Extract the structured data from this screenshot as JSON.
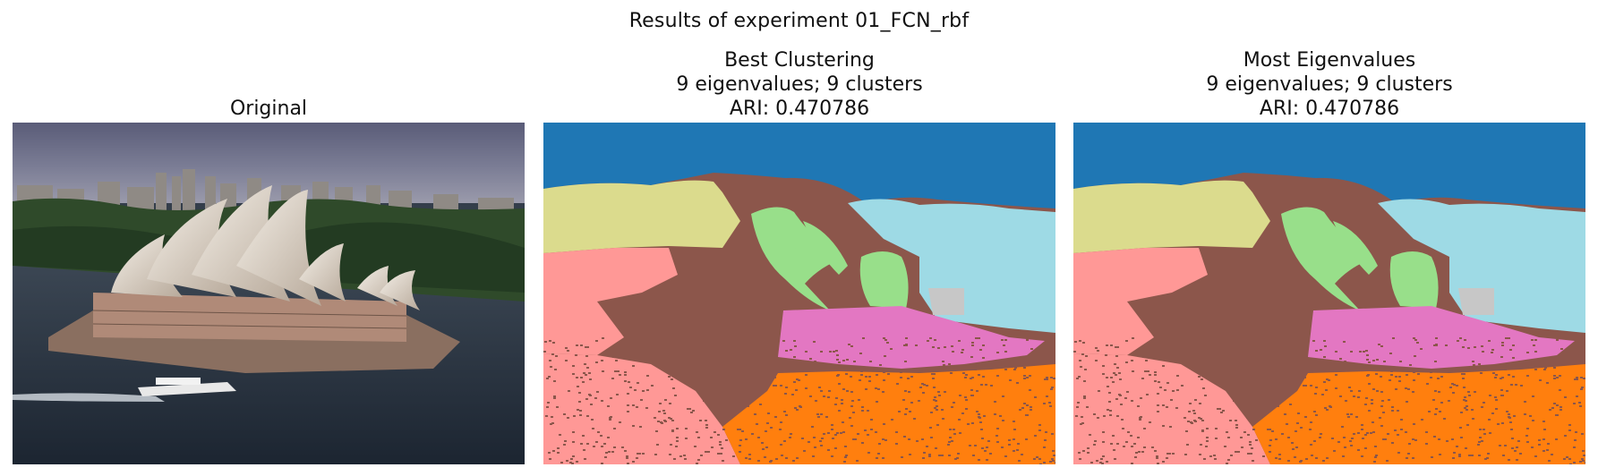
{
  "figure": {
    "suptitle": "Results of experiment 01_FCN_rbf"
  },
  "panels": [
    {
      "id": "original",
      "title_lines": [
        "Original"
      ],
      "image": "sydney-opera-house-harbour-photo"
    },
    {
      "id": "best-clustering",
      "title_lines": [
        "Best Clustering",
        "9 eigenvalues; 9 clusters",
        "ARI: 0.470786"
      ],
      "image": "segmentation-map",
      "eigenvalues": 9,
      "clusters": 9,
      "ari": 0.470786
    },
    {
      "id": "most-eigenvalues",
      "title_lines": [
        "Most Eigenvalues",
        "9 eigenvalues; 9 clusters",
        "ARI: 0.470786"
      ],
      "image": "segmentation-map",
      "eigenvalues": 9,
      "clusters": 9,
      "ari": 0.470786
    }
  ],
  "cluster_colors": {
    "sky": "#1f77b4",
    "background": "#8c564b",
    "left-bank": "#dbdb8d",
    "right-hills": "#9edae5",
    "sails": "#98df8a",
    "small-sail": "#c7c7c7",
    "building": "#e377c2",
    "left-water": "#ff9896",
    "right-water": "#ff7f0e"
  }
}
